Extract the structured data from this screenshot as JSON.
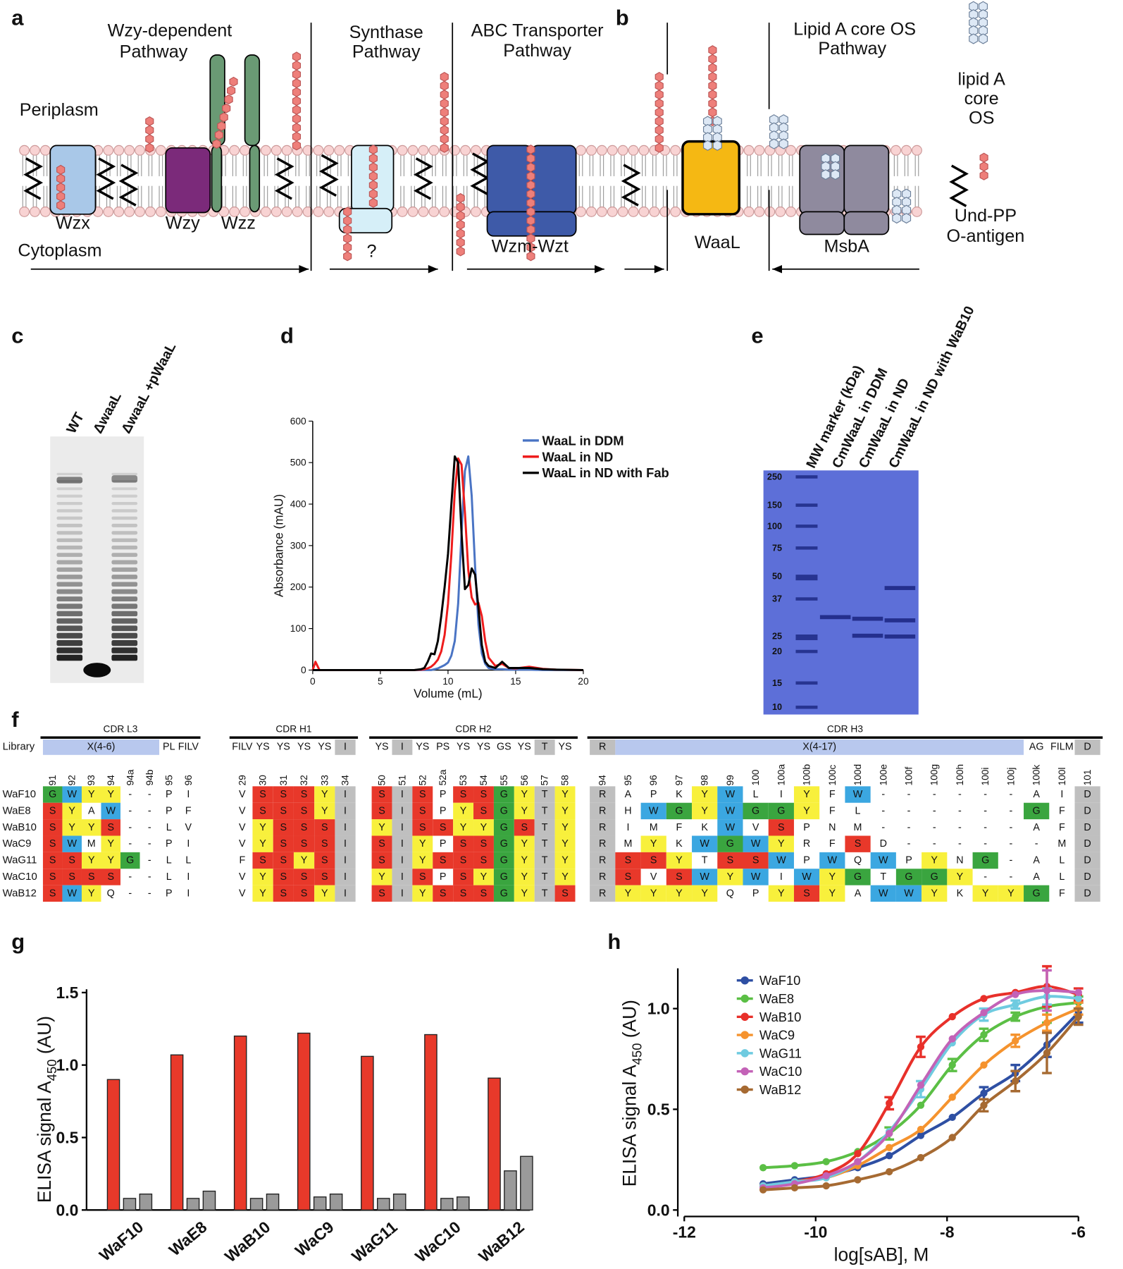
{
  "panel_labels": [
    "a",
    "b",
    "c",
    "d",
    "e",
    "f",
    "g",
    "h"
  ],
  "diagram_a": {
    "wzy_pathway": [
      "Wzy-dependent",
      "Pathway"
    ],
    "synthase_pathway": [
      "Synthase",
      "Pathway"
    ],
    "abc_pathway": [
      "ABC Transporter",
      "Pathway"
    ],
    "periplasm": "Periplasm",
    "cytoplasm": "Cytoplasm",
    "proteins": [
      "Wzx",
      "Wzy",
      "Wzz",
      "?",
      "Wzm-Wzt"
    ]
  },
  "diagram_b": {
    "pathway": [
      "Lipid A core OS",
      "Pathway"
    ],
    "proteins": [
      "WaaL",
      "MsbA"
    ],
    "legend_lipid": [
      "lipid A",
      "core",
      "OS"
    ],
    "legend_oantigen": [
      "Und-PP",
      "O-antigen"
    ]
  },
  "gel_c": {
    "lanes": [
      "WT",
      "ΔwaaL",
      "ΔwaaL +pWaaL"
    ]
  },
  "gel_e": {
    "lanes": [
      "MW marker (kDa)",
      "CmWaaL in DDM",
      "CmWaaL in ND",
      "CmWaaL in ND with WaB10"
    ],
    "markers": [
      250,
      150,
      100,
      75,
      50,
      37,
      25,
      20,
      15,
      10
    ]
  },
  "table_f": {
    "library_label": "Library",
    "residue_colors": {
      "S": "#e8382a",
      "Y": "#f8f03c",
      "W": "#3ba7e1",
      "G": "#3aa53f"
    },
    "fixed_color": "#bfbfbf",
    "library_color": "#b8c8ee",
    "groups": [
      {
        "title": "CDR L3",
        "library": [
          "X(4-6)",
          null,
          null,
          null,
          null,
          null,
          "PL",
          "FILV"
        ],
        "columns": [
          "91",
          "92",
          "93",
          "94",
          "94a",
          "94b",
          "95",
          "96"
        ]
      },
      {
        "title": "CDR H1",
        "library": [
          "FILV",
          "YS",
          "YS",
          "YS",
          "YS",
          "I"
        ],
        "columns": [
          "29",
          "30",
          "31",
          "32",
          "33",
          "34"
        ]
      },
      {
        "title": "CDR H2",
        "library": [
          "YS",
          "I",
          "YS",
          "PS",
          "YS",
          "YS",
          "GS",
          "YS",
          "T",
          "YS"
        ],
        "columns": [
          "50",
          "51",
          "52",
          "52a",
          "53",
          "54",
          "55",
          "56",
          "57",
          "58"
        ]
      },
      {
        "title": "CDR H3",
        "library": [
          "R",
          "X(4-17)",
          null,
          null,
          null,
          null,
          null,
          null,
          null,
          null,
          null,
          null,
          null,
          null,
          null,
          null,
          null,
          "AG",
          "FILM",
          "D"
        ],
        "columns": [
          "94",
          "95",
          "96",
          "97",
          "98",
          "99",
          "100",
          "100a",
          "100b",
          "100c",
          "100d",
          "100e",
          "100f",
          "100g",
          "100h",
          "100i",
          "100j",
          "100k",
          "100l",
          "101"
        ]
      }
    ],
    "rows": [
      {
        "name": "WaF10",
        "residues": [
          [
            "G",
            "W",
            "Y",
            "Y",
            "-",
            "-",
            "P",
            "I"
          ],
          [
            "V",
            "S",
            "S",
            "S",
            "Y",
            "I"
          ],
          [
            "S",
            "I",
            "S",
            "P",
            "S",
            "S",
            "G",
            "Y",
            "T",
            "Y"
          ],
          [
            "R",
            "A",
            "P",
            "K",
            "Y",
            "W",
            "L",
            "I",
            "Y",
            "F",
            "W",
            "-",
            "-",
            "-",
            "-",
            "-",
            "-",
            "A",
            "I",
            "D"
          ]
        ]
      },
      {
        "name": "WaE8",
        "residues": [
          [
            "S",
            "Y",
            "A",
            "W",
            "-",
            "-",
            "P",
            "F"
          ],
          [
            "V",
            "S",
            "S",
            "S",
            "Y",
            "I"
          ],
          [
            "S",
            "I",
            "S",
            "P",
            "Y",
            "S",
            "G",
            "Y",
            "T",
            "Y"
          ],
          [
            "R",
            "H",
            "W",
            "G",
            "Y",
            "W",
            "G",
            "G",
            "Y",
            "F",
            "L",
            "-",
            "-",
            "-",
            "-",
            "-",
            "-",
            "G",
            "F",
            "D"
          ]
        ]
      },
      {
        "name": "WaB10",
        "residues": [
          [
            "S",
            "Y",
            "Y",
            "S",
            "-",
            "-",
            "L",
            "V"
          ],
          [
            "V",
            "Y",
            "S",
            "S",
            "S",
            "I"
          ],
          [
            "Y",
            "I",
            "S",
            "S",
            "Y",
            "Y",
            "G",
            "S",
            "T",
            "Y"
          ],
          [
            "R",
            "I",
            "M",
            "F",
            "K",
            "W",
            "V",
            "S",
            "P",
            "N",
            "M",
            "-",
            "-",
            "-",
            "-",
            "-",
            "-",
            "A",
            "F",
            "D"
          ]
        ]
      },
      {
        "name": "WaC9",
        "residues": [
          [
            "S",
            "W",
            "M",
            "Y",
            "-",
            "-",
            "P",
            "I"
          ],
          [
            "V",
            "Y",
            "S",
            "S",
            "S",
            "I"
          ],
          [
            "S",
            "I",
            "Y",
            "P",
            "S",
            "S",
            "G",
            "Y",
            "T",
            "Y"
          ],
          [
            "R",
            "M",
            "Y",
            "K",
            "W",
            "G",
            "W",
            "Y",
            "R",
            "F",
            "S",
            "D",
            "-",
            "-",
            "-",
            "-",
            "-",
            "-",
            "M",
            "D"
          ]
        ]
      },
      {
        "name": "WaG11",
        "residues": [
          [
            "S",
            "S",
            "Y",
            "Y",
            "G",
            "-",
            "L",
            "L"
          ],
          [
            "F",
            "S",
            "S",
            "Y",
            "S",
            "I"
          ],
          [
            "S",
            "I",
            "Y",
            "S",
            "S",
            "S",
            "G",
            "Y",
            "T",
            "Y"
          ],
          [
            "R",
            "S",
            "S",
            "Y",
            "T",
            "S",
            "S",
            "W",
            "P",
            "W",
            "Q",
            "W",
            "P",
            "Y",
            "N",
            "G",
            "-",
            "A",
            "L",
            "D"
          ]
        ]
      },
      {
        "name": "WaC10",
        "residues": [
          [
            "S",
            "S",
            "S",
            "S",
            "-",
            "-",
            "L",
            "I"
          ],
          [
            "V",
            "Y",
            "S",
            "S",
            "S",
            "I"
          ],
          [
            "Y",
            "I",
            "S",
            "P",
            "S",
            "Y",
            "G",
            "Y",
            "T",
            "Y"
          ],
          [
            "R",
            "S",
            "V",
            "S",
            "W",
            "Y",
            "W",
            "I",
            "W",
            "Y",
            "G",
            "T",
            "G",
            "G",
            "Y",
            "-",
            "-",
            "A",
            "L",
            "D"
          ]
        ]
      },
      {
        "name": "WaB12",
        "residues": [
          [
            "S",
            "W",
            "Y",
            "Q",
            "-",
            "-",
            "P",
            "I"
          ],
          [
            "V",
            "Y",
            "S",
            "S",
            "Y",
            "I"
          ],
          [
            "S",
            "I",
            "Y",
            "S",
            "S",
            "S",
            "G",
            "Y",
            "T",
            "S"
          ],
          [
            "R",
            "Y",
            "Y",
            "Y",
            "Y",
            "Q",
            "P",
            "Y",
            "S",
            "Y",
            "A",
            "W",
            "W",
            "Y",
            "K",
            "Y",
            "Y",
            "G",
            "F",
            "D"
          ]
        ]
      }
    ]
  },
  "chart_data": [
    {
      "type": "line",
      "x_label": "Volume (mL)",
      "y_label": "Absorbance (mAU)",
      "x": [
        0,
        0.2,
        0.5,
        1,
        2,
        4,
        6,
        7,
        7.5,
        8,
        8.25,
        8.5,
        8.75,
        9,
        9.25,
        9.5,
        9.75,
        10,
        10.25,
        10.5,
        10.75,
        11,
        11.25,
        11.5,
        11.75,
        12,
        12.25,
        12.5,
        12.75,
        13,
        13.5,
        14,
        14.5,
        15,
        16,
        17,
        18,
        20
      ],
      "series": [
        {
          "name": "WaaL in DDM",
          "color": "#4a74c4",
          "values": [
            0,
            0,
            0,
            0,
            0,
            0,
            0,
            0,
            0,
            0,
            0,
            0,
            0,
            2,
            4,
            8,
            12,
            18,
            35,
            70,
            160,
            330,
            480,
            515,
            420,
            250,
            110,
            40,
            15,
            5,
            2,
            2,
            1,
            1,
            1,
            0,
            0,
            0
          ]
        },
        {
          "name": "WaaL in ND",
          "color": "#ee1c1c",
          "values": [
            0,
            20,
            0,
            0,
            0,
            0,
            0,
            0,
            0,
            1,
            2,
            4,
            8,
            15,
            25,
            45,
            85,
            160,
            280,
            430,
            510,
            495,
            380,
            240,
            175,
            158,
            162,
            130,
            70,
            30,
            10,
            15,
            5,
            4,
            8,
            3,
            1,
            0
          ]
        },
        {
          "name": "WaaL in ND with Fab",
          "color": "#000000",
          "values": [
            0,
            0,
            0,
            0,
            0,
            0,
            0,
            0,
            0,
            2,
            5,
            20,
            40,
            38,
            70,
            130,
            200,
            280,
            400,
            515,
            500,
            330,
            195,
            205,
            245,
            230,
            150,
            60,
            20,
            10,
            5,
            20,
            5,
            5,
            5,
            2,
            1,
            0
          ]
        }
      ],
      "xlim": [
        0,
        20
      ],
      "ylim": [
        0,
        600
      ],
      "xticks": [
        0,
        5,
        10,
        15,
        20
      ],
      "yticks": [
        0,
        100,
        200,
        300,
        400,
        500,
        600
      ],
      "legend": "upper right"
    },
    {
      "type": "bar",
      "y_label": [
        "ELISA signal A",
        "450",
        " (AU)"
      ],
      "categories": [
        "WaF10",
        "WaE8",
        "WaB10",
        "WaC9",
        "WaG11",
        "WaC10",
        "WaB12"
      ],
      "series": [
        {
          "color": "#e8392a",
          "values": [
            0.9,
            1.07,
            1.2,
            1.22,
            1.06,
            1.21,
            0.91
          ]
        },
        {
          "color": "#9a9a9a",
          "values": [
            0.08,
            0.08,
            0.08,
            0.09,
            0.08,
            0.08,
            0.27
          ]
        },
        {
          "color": "#9a9a9a",
          "values": [
            0.11,
            0.13,
            0.11,
            0.11,
            0.11,
            0.09,
            0.37
          ]
        }
      ],
      "ylim": [
        0,
        1.5
      ],
      "yticks": [
        {
          "value": 0,
          "label": "0.0"
        },
        0.5,
        {
          "value": 1,
          "label": "1.0"
        },
        1.5
      ]
    },
    {
      "type": "scatter",
      "x_label": "log[sAB], M",
      "y_label": [
        "ELISA signal A",
        "450",
        " (AU)"
      ],
      "x": [
        -10.8,
        -10.32,
        -9.84,
        -9.36,
        -8.88,
        -8.4,
        -7.92,
        -7.44,
        -6.96,
        -6.48,
        -6.0
      ],
      "series": [
        {
          "name": "WaF10",
          "color": "#2e4fa3",
          "values": [
            0.13,
            0.15,
            0.17,
            0.21,
            0.27,
            0.37,
            0.46,
            0.58,
            0.68,
            0.82,
            0.98
          ],
          "errors": [
            null,
            null,
            null,
            null,
            null,
            null,
            null,
            0.03,
            0.04,
            0.06,
            0.05
          ]
        },
        {
          "name": "WaE8",
          "color": "#5bbf45",
          "values": [
            0.21,
            0.22,
            0.24,
            0.29,
            0.38,
            0.52,
            0.72,
            0.87,
            0.96,
            1.01,
            1.03
          ],
          "errors": [
            null,
            null,
            null,
            null,
            0.03,
            null,
            0.03,
            0.03,
            0.02,
            0.08,
            0.03
          ]
        },
        {
          "name": "WaB10",
          "color": "#e8302a",
          "values": [
            0.12,
            0.14,
            0.18,
            0.28,
            0.53,
            0.81,
            0.96,
            1.05,
            1.08,
            1.11,
            1.07
          ],
          "errors": [
            null,
            null,
            null,
            null,
            0.03,
            0.05,
            null,
            null,
            null,
            0.1,
            0.03
          ]
        },
        {
          "name": "WaC9",
          "color": "#f5932e",
          "values": [
            0.12,
            0.14,
            0.16,
            0.22,
            0.31,
            0.4,
            0.56,
            0.72,
            0.84,
            0.93,
            1.0
          ],
          "errors": [
            null,
            null,
            null,
            null,
            null,
            null,
            null,
            null,
            0.03,
            0.04,
            0.03
          ]
        },
        {
          "name": "WaG11",
          "color": "#6fcbe0",
          "values": [
            0.12,
            0.14,
            0.16,
            0.24,
            0.39,
            0.6,
            0.83,
            0.97,
            1.02,
            1.06,
            1.05
          ],
          "errors": [
            null,
            null,
            null,
            null,
            null,
            0.04,
            null,
            0.03,
            0.02,
            0.04,
            null
          ]
        },
        {
          "name": "WaC10",
          "color": "#c362b7",
          "values": [
            0.11,
            0.13,
            0.17,
            0.24,
            0.38,
            0.62,
            0.85,
            0.98,
            1.07,
            1.09,
            1.08
          ],
          "errors": [
            null,
            null,
            null,
            null,
            null,
            null,
            null,
            null,
            null,
            0.1,
            null
          ]
        },
        {
          "name": "WaB12",
          "color": "#a66a32",
          "values": [
            0.1,
            0.11,
            0.12,
            0.15,
            0.19,
            0.26,
            0.36,
            0.52,
            0.64,
            0.78,
            0.96
          ],
          "errors": [
            null,
            null,
            null,
            null,
            null,
            null,
            null,
            0.03,
            0.05,
            0.1,
            0.04
          ]
        }
      ],
      "xlim": [
        -12,
        -6
      ],
      "ylim": [
        0,
        1.2
      ],
      "xticks": [
        -12,
        -10,
        -8,
        -6
      ],
      "yticks": [
        {
          "value": 0,
          "label": "0.0"
        },
        0.5,
        {
          "value": 1,
          "label": "1.0"
        }
      ],
      "legend": "upper left"
    }
  ]
}
